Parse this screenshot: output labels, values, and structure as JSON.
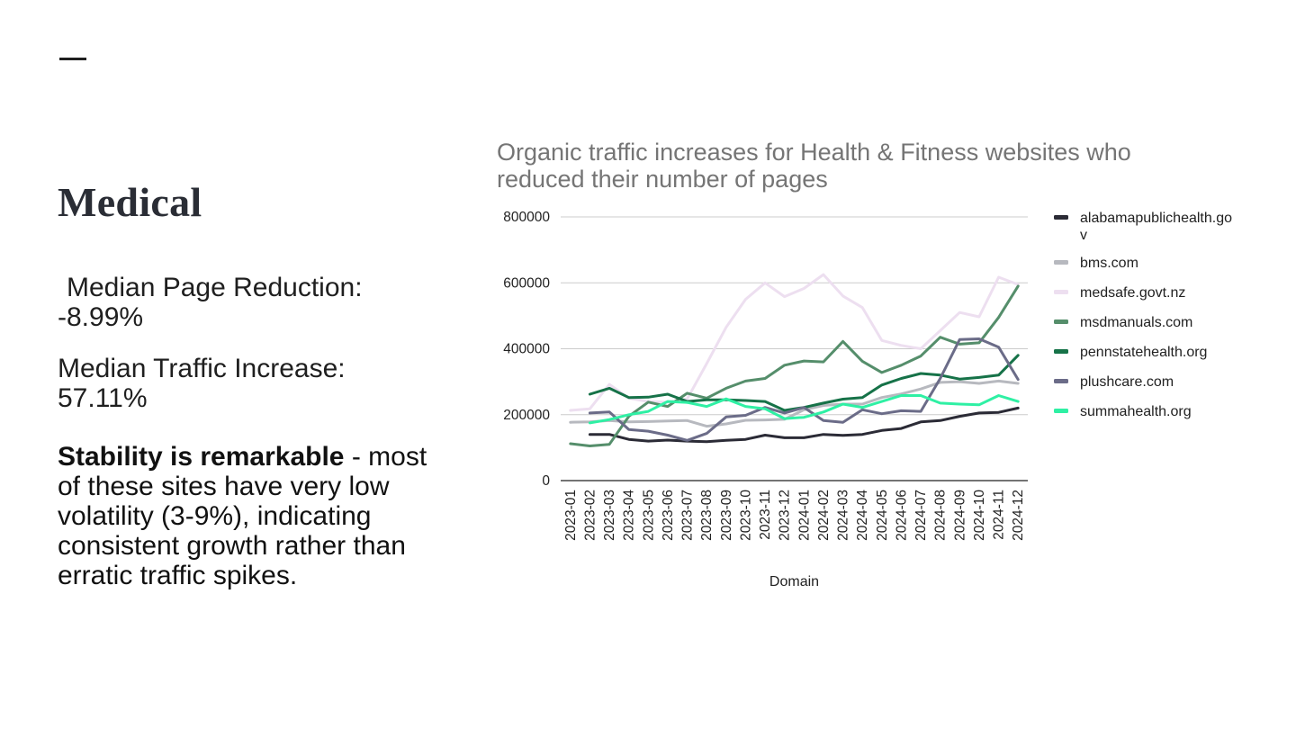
{
  "slide": {
    "heading": "Medical",
    "median_page_reduction_label": "Median Page Reduction:",
    "median_page_reduction_value": "-8.99%",
    "median_traffic_increase_label": "Median Traffic Increase:",
    "median_traffic_increase_value": "57.11%",
    "stability_bold": "Stability is remarkable",
    "stability_rest": " - most of these sites have very low volatility (3-9%), indicating consistent growth rather than erratic traffic spikes."
  },
  "chart_data": {
    "type": "line",
    "title_line1": "Organic traffic increases for Health & Fitness websites who",
    "title_line2": "reduced their number of pages",
    "xlabel": "Domain",
    "ylabel": "",
    "ylim": [
      0,
      800000
    ],
    "yticks": [
      0,
      200000,
      400000,
      600000,
      800000
    ],
    "ytick_labels": [
      "0",
      "200000",
      "400000",
      "600000",
      "800000"
    ],
    "grid": true,
    "legend_position": "right",
    "categories": [
      "2023-01",
      "2023-02",
      "2023-03",
      "2023-04",
      "2023-05",
      "2023-06",
      "2023-07",
      "2023-08",
      "2023-09",
      "2023-10",
      "2023-11",
      "2023-12",
      "2024-01",
      "2024-02",
      "2024-03",
      "2024-04",
      "2024-05",
      "2024-06",
      "2024-07",
      "2024-08",
      "2024-09",
      "2024-10",
      "2024-11",
      "2024-12"
    ],
    "series": [
      {
        "name": "alabamapublichealth.go",
        "name2": "v",
        "color": "#2b2b36",
        "values": [
          null,
          140000,
          140000,
          125000,
          120000,
          123000,
          120000,
          118000,
          122000,
          125000,
          138000,
          130000,
          130000,
          140000,
          137000,
          140000,
          152000,
          158000,
          178000,
          182000,
          195000,
          205000,
          207000,
          220000
        ]
      },
      {
        "name": "bms.com",
        "color": "#b7b9bf",
        "values": [
          177000,
          178000,
          182000,
          178000,
          179000,
          181000,
          182000,
          165000,
          172000,
          183000,
          184000,
          186000,
          215000,
          228000,
          232000,
          232000,
          252000,
          263000,
          278000,
          298000,
          300000,
          295000,
          302000,
          295000
        ]
      },
      {
        "name": "medsafe.govt.nz",
        "color": "#eddff0",
        "values": [
          213000,
          218000,
          292000,
          250000,
          240000,
          238000,
          248000,
          355000,
          465000,
          550000,
          600000,
          558000,
          583000,
          625000,
          560000,
          525000,
          425000,
          410000,
          400000,
          455000,
          510000,
          497000,
          617000,
          595000
        ]
      },
      {
        "name": "msdmanuals.com",
        "color": "#558e6b",
        "values": [
          112000,
          105000,
          110000,
          195000,
          238000,
          225000,
          265000,
          250000,
          280000,
          302000,
          310000,
          350000,
          363000,
          360000,
          422000,
          362000,
          328000,
          350000,
          378000,
          435000,
          414000,
          418000,
          495000,
          590000
        ]
      },
      {
        "name": "pennstatehealth.org",
        "color": "#167248",
        "values": [
          null,
          262000,
          280000,
          252000,
          253000,
          262000,
          240000,
          245000,
          245000,
          243000,
          240000,
          213000,
          222000,
          235000,
          247000,
          252000,
          290000,
          310000,
          325000,
          320000,
          308000,
          313000,
          320000,
          380000
        ]
      },
      {
        "name": "plushcare.com",
        "color": "#6b6c88",
        "values": [
          null,
          205000,
          208000,
          155000,
          150000,
          138000,
          122000,
          143000,
          193000,
          198000,
          222000,
          205000,
          222000,
          182000,
          177000,
          215000,
          203000,
          212000,
          210000,
          310000,
          428000,
          430000,
          405000,
          307000
        ]
      },
      {
        "name": "summahealth.org",
        "color": "#2ff0a4",
        "values": [
          null,
          175000,
          185000,
          200000,
          210000,
          240000,
          237000,
          225000,
          248000,
          225000,
          218000,
          188000,
          192000,
          208000,
          232000,
          222000,
          240000,
          258000,
          258000,
          235000,
          232000,
          230000,
          258000,
          240000
        ]
      }
    ]
  }
}
